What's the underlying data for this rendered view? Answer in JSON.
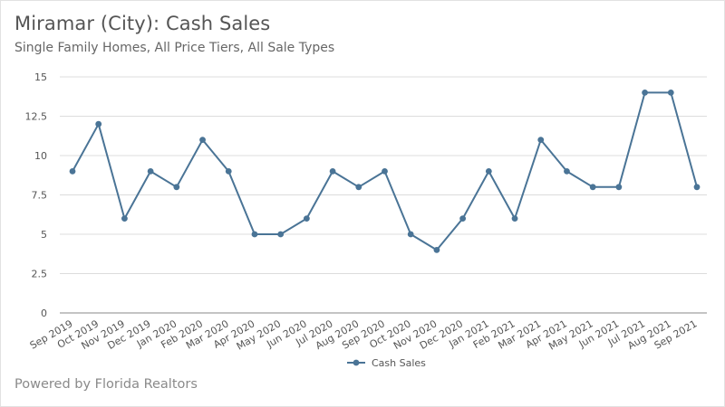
{
  "title": "Miramar (City): Cash Sales",
  "subtitle": "Single Family Homes, All Price Tiers, All Sale Types",
  "footer": "Powered by Florida Realtors",
  "colors": {
    "line": "#4a7496",
    "grid": "#dcdcdc",
    "axis": "#888888"
  },
  "chart_data": {
    "type": "line",
    "categories": [
      "Sep 2019",
      "Oct 2019",
      "Nov 2019",
      "Dec 2019",
      "Jan 2020",
      "Feb 2020",
      "Mar 2020",
      "Apr 2020",
      "May 2020",
      "Jun 2020",
      "Jul 2020",
      "Aug 2020",
      "Sep 2020",
      "Oct 2020",
      "Nov 2020",
      "Dec 2020",
      "Jan 2021",
      "Feb 2021",
      "Mar 2021",
      "Apr 2021",
      "May 2021",
      "Jun 2021",
      "Jul 2021",
      "Aug 2021",
      "Sep 2021"
    ],
    "series": [
      {
        "name": "Cash Sales",
        "values": [
          9,
          12,
          6,
          9,
          8,
          11,
          9,
          5,
          5,
          6,
          9,
          8,
          9,
          5,
          4,
          6,
          9,
          6,
          11,
          9,
          8,
          8,
          14,
          14,
          8
        ]
      }
    ],
    "yticks": [
      "0",
      "2.5",
      "5",
      "7.5",
      "10",
      "12.5",
      "15"
    ],
    "ylim": [
      0,
      15
    ],
    "grid": true,
    "legend": "bottom-center",
    "xlabel": "",
    "ylabel": ""
  }
}
